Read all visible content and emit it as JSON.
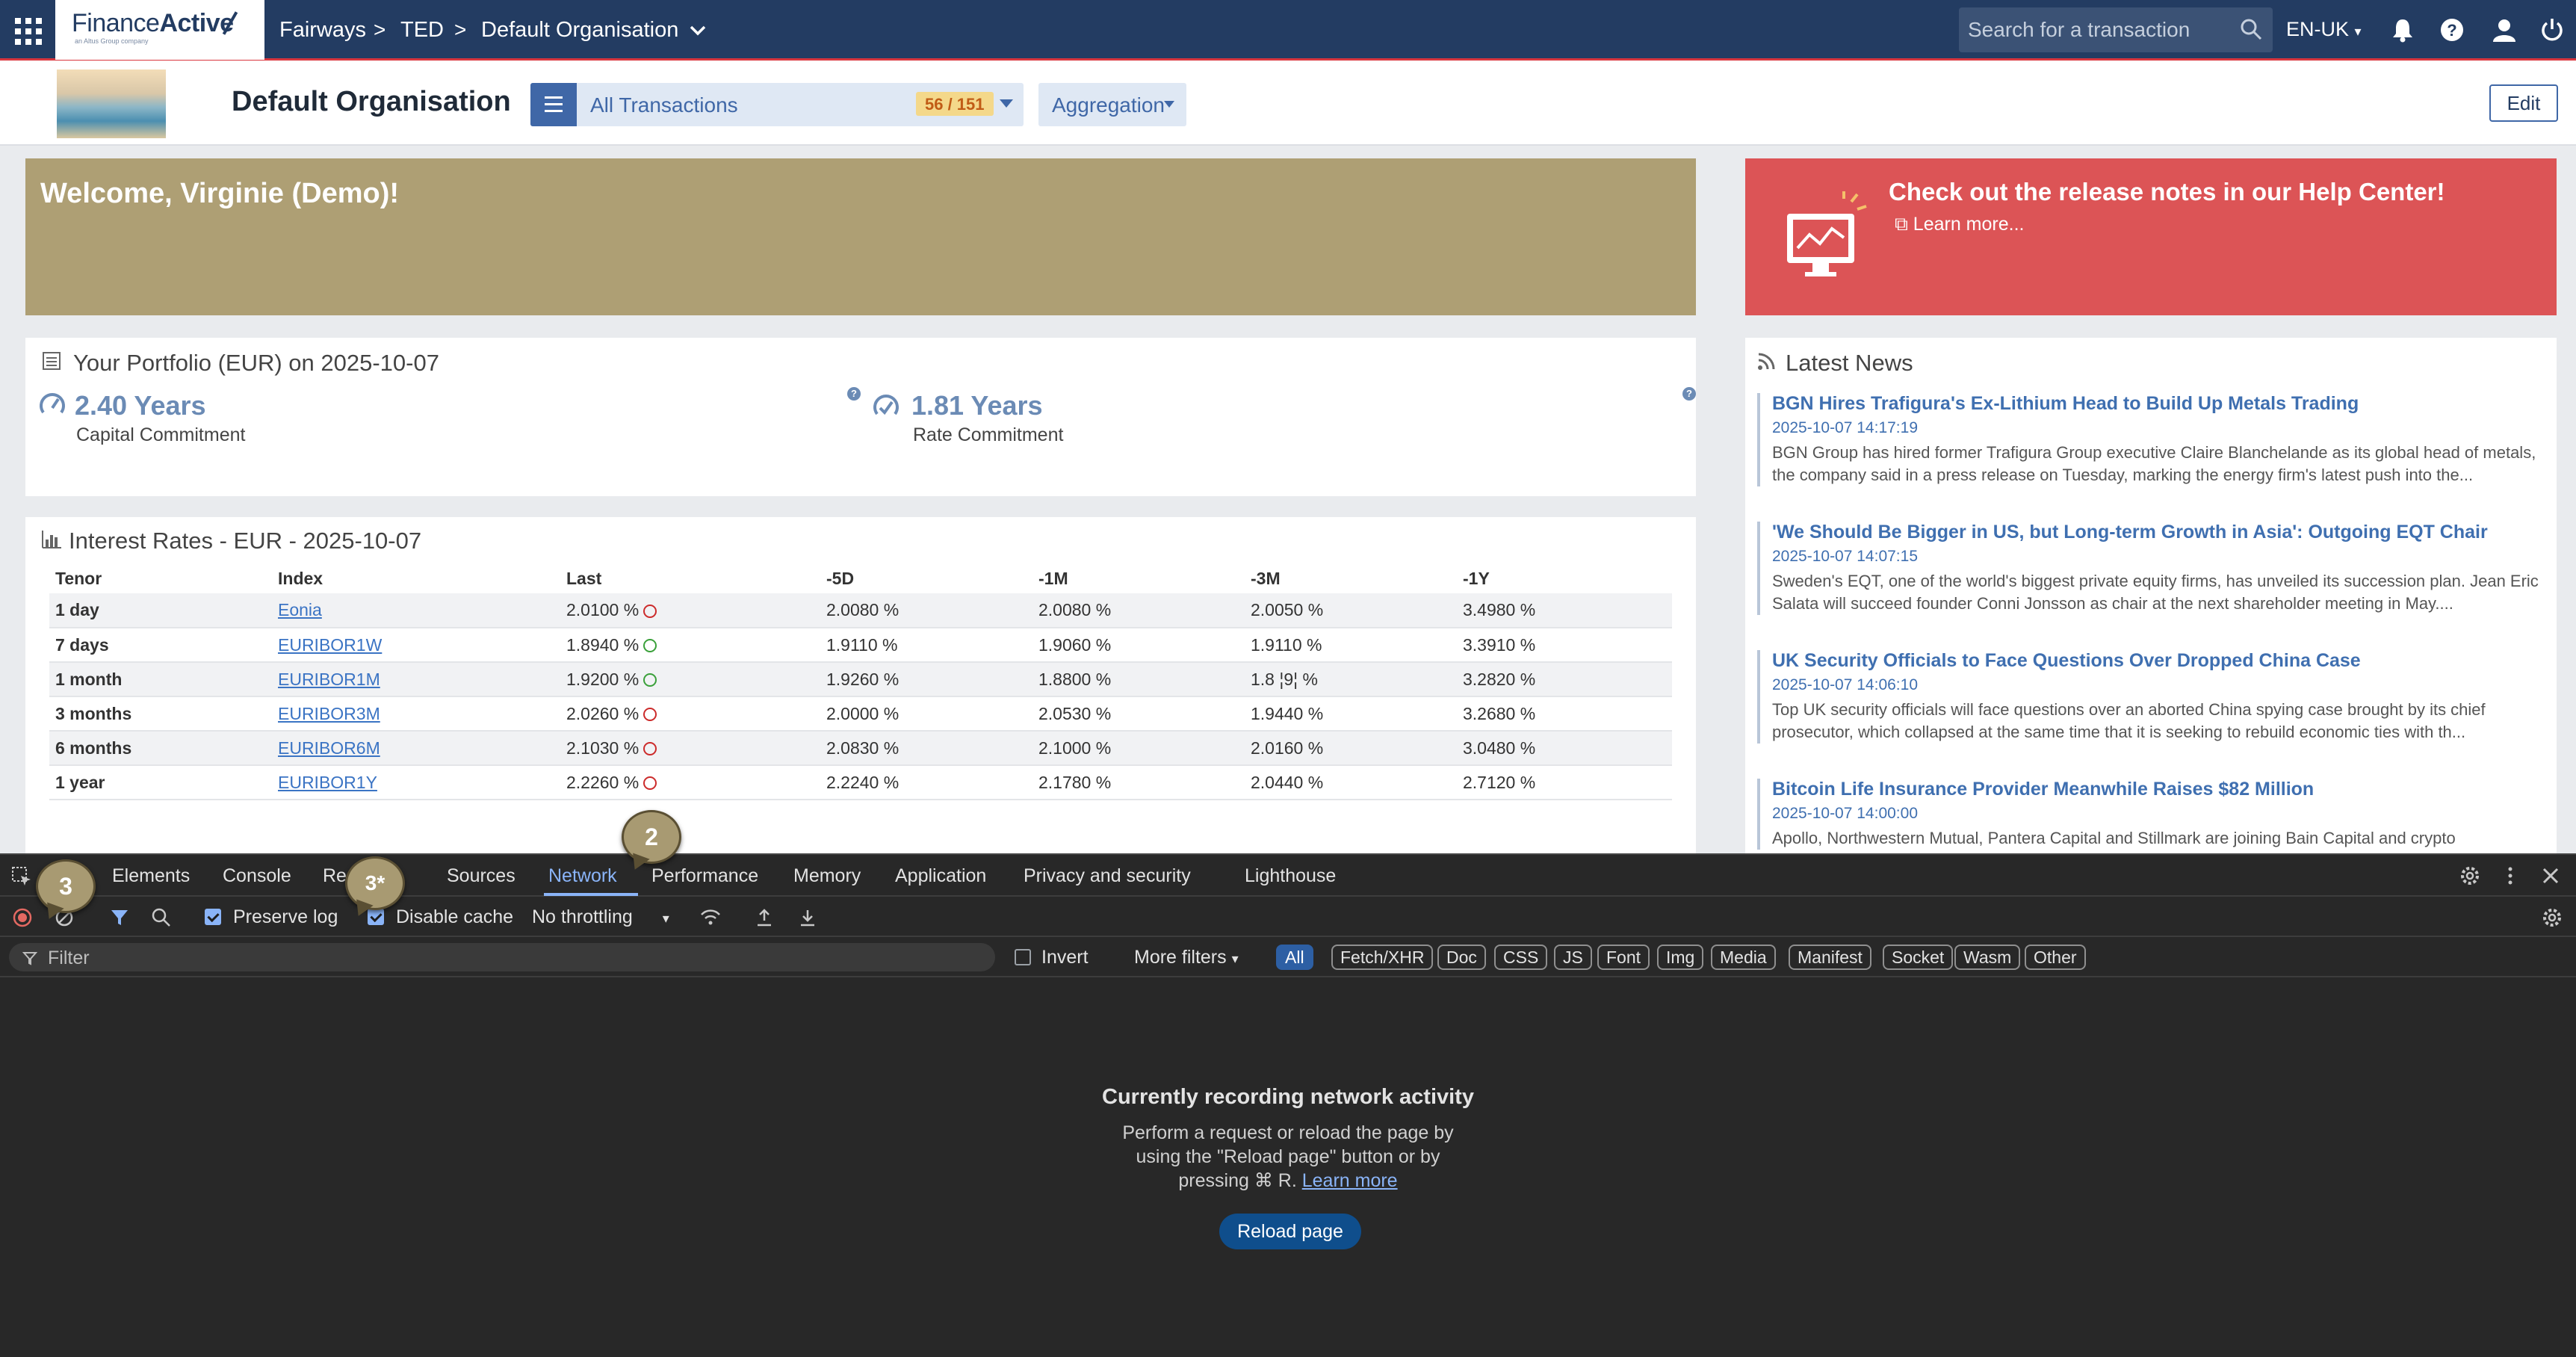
{
  "topnav": {
    "brand_main": "Finance",
    "brand_bold": "Active",
    "brand_sub": "an Altus Group company",
    "breadcrumb": [
      "Fairways",
      "TED",
      "Default Organisation"
    ],
    "search_placeholder": "Search for a transaction",
    "language": "EN-UK",
    "icons": [
      "apps-grid-icon",
      "search-icon",
      "bell-icon",
      "help-icon",
      "user-icon",
      "power-icon"
    ]
  },
  "header": {
    "org_title": "Default Organisation",
    "transactions_label": "All Transactions",
    "transactions_count": "56 / 151",
    "aggregation_label": "Aggregation",
    "edit_label": "Edit"
  },
  "welcome": {
    "text": "Welcome, Virginie (Demo)!"
  },
  "release": {
    "title": "Check out the release notes in our Help Center!",
    "link": "Learn more..."
  },
  "portfolio": {
    "title": "Your Portfolio (EUR) on 2025-10-07",
    "metrics": [
      {
        "value": "2.40 Years",
        "label": "Capital Commitment"
      },
      {
        "value": "1.81 Years",
        "label": "Rate Commitment"
      }
    ]
  },
  "rates": {
    "title": "Interest Rates - EUR - 2025-10-07",
    "columns": [
      "Tenor",
      "Index",
      "Last",
      "-5D",
      "-1M",
      "-3M",
      "-1Y"
    ],
    "rows": [
      {
        "tenor": "1 day",
        "index": "Eonia",
        "last": "2.0100 %",
        "trend": "down",
        "d5": "2.0080 %",
        "m1": "2.0080 %",
        "m3": "2.0050 %",
        "y1": "3.4980 %"
      },
      {
        "tenor": "7 days",
        "index": "EURIBOR1W",
        "last": "1.8940 %",
        "trend": "up",
        "d5": "1.9110 %",
        "m1": "1.9060 %",
        "m3": "1.9110 %",
        "y1": "3.3910 %"
      },
      {
        "tenor": "1 month",
        "index": "EURIBOR1M",
        "last": "1.9200 %",
        "trend": "up",
        "d5": "1.9260 %",
        "m1": "1.8800 %",
        "m3": "1.8 ¦9¦ %",
        "y1": "3.2820 %"
      },
      {
        "tenor": "3 months",
        "index": "EURIBOR3M",
        "last": "2.0260 %",
        "trend": "down",
        "d5": "2.0000 %",
        "m1": "2.0530 %",
        "m3": "1.9440 %",
        "y1": "3.2680 %"
      },
      {
        "tenor": "6 months",
        "index": "EURIBOR6M",
        "last": "2.1030 %",
        "trend": "down",
        "d5": "2.0830 %",
        "m1": "2.1000 %",
        "m3": "2.0160 %",
        "y1": "3.0480 %"
      },
      {
        "tenor": "1 year",
        "index": "EURIBOR1Y",
        "last": "2.2260 %",
        "trend": "down",
        "d5": "2.2240 %",
        "m1": "2.1780 %",
        "m3": "2.0440 %",
        "y1": "2.7120 %"
      }
    ]
  },
  "news": {
    "title": "Latest News",
    "items": [
      {
        "title": "BGN Hires Trafigura's Ex-Lithium Head to Build Up Metals Trading",
        "date": "2025-10-07 14:17:19",
        "body": "BGN Group has hired former Trafigura Group executive Claire Blanchelande as its global head of metals, the company said in a press release on Tuesday, marking the energy firm's latest push into the..."
      },
      {
        "title": "'We Should Be Bigger in US, but Long-term Growth in Asia': Outgoing EQT Chair",
        "date": "2025-10-07 14:07:15",
        "body": "Sweden's EQT, one of the world's biggest private equity firms, has unveiled its succession plan. Jean Eric Salata will succeed founder Conni Jonsson as chair at the next shareholder meeting in May...."
      },
      {
        "title": "UK Security Officials to Face Questions Over Dropped China Case",
        "date": "2025-10-07 14:06:10",
        "body": "Top UK security officials will face questions over an aborted China spying case brought by its chief prosecutor, which collapsed at the same time that it is seeking to rebuild economic ties with th..."
      },
      {
        "title": "Bitcoin Life Insurance Provider Meanwhile Raises $82 Million",
        "date": "2025-10-07 14:00:00",
        "body": "Apollo, Northwestern Mutual, Pantera Capital and Stillmark are joining Bain Capital and crypto"
      }
    ]
  },
  "devtools": {
    "tabs": [
      "Elements",
      "Console",
      "Rec",
      "Sources",
      "Network",
      "Performance",
      "Memory",
      "Application",
      "Privacy and security",
      "Lighthouse"
    ],
    "active_tab": "Network",
    "preserve_log": "Preserve log",
    "disable_cache": "Disable cache",
    "throttling": "No throttling",
    "filter_placeholder": "Filter",
    "invert": "Invert",
    "more_filters": "More filters",
    "chips": [
      "All",
      "Fetch/XHR",
      "Doc",
      "CSS",
      "JS",
      "Font",
      "Img",
      "Media",
      "Manifest",
      "Socket",
      "Wasm",
      "Other"
    ],
    "empty_title": "Currently recording network activity",
    "empty_body": "Perform a request or reload the page by using the \"Reload page\" button or by pressing ⌘ R.",
    "learn_more": "Learn more",
    "reload_button": "Reload page"
  },
  "annotations": [
    "3",
    "3*",
    "2"
  ]
}
